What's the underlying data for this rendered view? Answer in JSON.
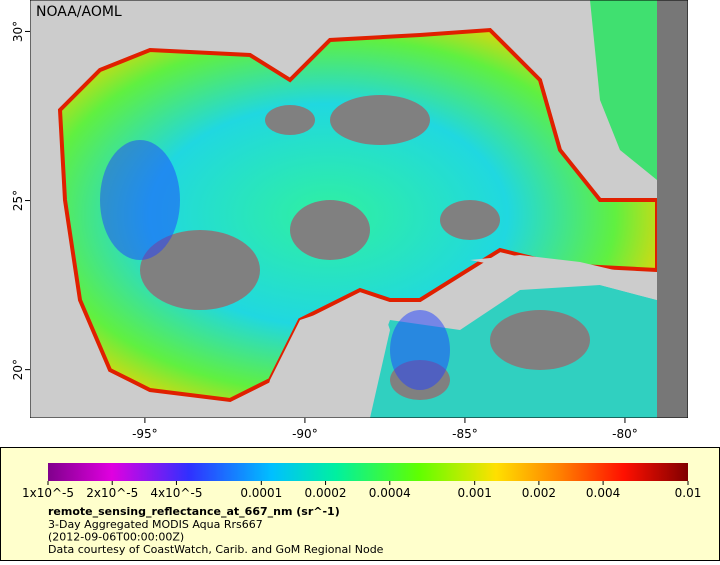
{
  "map": {
    "label": "NOAA/AOML",
    "xlim": [
      -98.59,
      -78.03
    ],
    "ylim": [
      18.57,
      30.93
    ],
    "xticks": [
      {
        "value": -95,
        "label": "-95°"
      },
      {
        "value": -90,
        "label": "-90°"
      },
      {
        "value": -85,
        "label": "-85°"
      },
      {
        "value": -80,
        "label": "-80°"
      }
    ],
    "yticks": [
      {
        "value": 30,
        "label": "30°"
      },
      {
        "value": 25,
        "label": "25°"
      },
      {
        "value": 20,
        "label": "20°"
      }
    ]
  },
  "colorbar": {
    "scale": "log",
    "range": [
      1e-05,
      0.01
    ],
    "ticks": [
      {
        "value": 1e-05,
        "label": "1x10^-5"
      },
      {
        "value": 2e-05,
        "label": "2x10^-5"
      },
      {
        "value": 4e-05,
        "label": "4x10^-5"
      },
      0.0001,
      0.0002,
      0.0004,
      0.001,
      0.002,
      0.004,
      0.01
    ],
    "title": "remote_sensing_reflectance_at_667_nm (sr^-1)",
    "lines": [
      "3-Day Aggregated MODIS Aqua Rrs667",
      "(2012-09-06T00:00:00Z)",
      "Data courtesy of CoastWatch, Carib. and GoM Regional Node"
    ]
  }
}
